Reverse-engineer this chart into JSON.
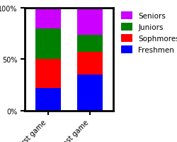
{
  "categories": [
    "First game",
    "Last game"
  ],
  "series": [
    {
      "label": "Freshmen",
      "color": "#0000ff",
      "values": [
        22,
        35
      ]
    },
    {
      "label": "Sophmores",
      "color": "#ff0000",
      "values": [
        28,
        22
      ]
    },
    {
      "label": "Juniors",
      "color": "#008000",
      "values": [
        30,
        17
      ]
    },
    {
      "label": "Seniors",
      "color": "#cc00ff",
      "values": [
        20,
        26
      ]
    }
  ],
  "ylim": [
    0,
    100
  ],
  "yticks": [
    0,
    50,
    100
  ],
  "ytick_labels": [
    "0%",
    "50%",
    "100%"
  ],
  "bar_width": 0.6,
  "background_color": "#ffffff",
  "tick_fontsize": 7,
  "legend_fontsize": 7.5,
  "figsize": [
    2.5,
    2.01
  ],
  "dpi": 100
}
